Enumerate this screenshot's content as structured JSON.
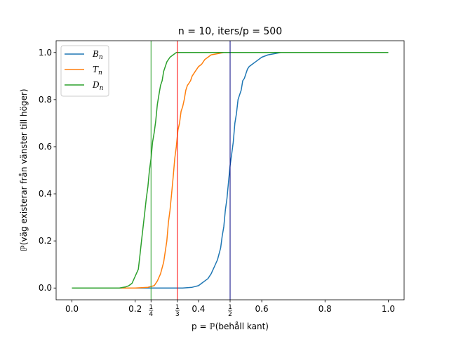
{
  "chart_data": {
    "type": "line",
    "title": "n = 10, iters/p = 500",
    "xlabel": "p = ℙ(behåll kant)",
    "ylabel": "ℙ(väg existerar från vänster till höger)",
    "xlim": [
      -0.05,
      1.05
    ],
    "ylim": [
      -0.05,
      1.05
    ],
    "xticks": [
      {
        "value": 0.0,
        "label": "0.0"
      },
      {
        "value": 0.2,
        "label": "0.2"
      },
      {
        "value": 0.4,
        "label": "0.4"
      },
      {
        "value": 0.6,
        "label": "0.6"
      },
      {
        "value": 0.8,
        "label": "0.8"
      },
      {
        "value": 1.0,
        "label": "1.0"
      }
    ],
    "fraction_xticks": [
      {
        "value": 0.25,
        "num": "1",
        "den": "4"
      },
      {
        "value": 0.3333,
        "num": "1",
        "den": "3"
      },
      {
        "value": 0.5,
        "num": "1",
        "den": "2"
      }
    ],
    "yticks": [
      {
        "value": 0.0,
        "label": "0.0"
      },
      {
        "value": 0.2,
        "label": "0.2"
      },
      {
        "value": 0.4,
        "label": "0.4"
      },
      {
        "value": 0.6,
        "label": "0.6"
      },
      {
        "value": 0.8,
        "label": "0.8"
      },
      {
        "value": 1.0,
        "label": "1.0"
      }
    ],
    "vlines": [
      {
        "x": 0.25,
        "color": "#2ca02c"
      },
      {
        "x": 0.3333,
        "color": "#ff0000"
      },
      {
        "x": 0.5,
        "color": "#000080"
      }
    ],
    "legend": {
      "placement": "top-left"
    },
    "series": [
      {
        "name": "B",
        "sub": "n",
        "color": "#1f77b4",
        "x": [
          0.0,
          0.3,
          0.35,
          0.38,
          0.4,
          0.41,
          0.42,
          0.43,
          0.44,
          0.45,
          0.46,
          0.47,
          0.475,
          0.48,
          0.485,
          0.49,
          0.495,
          0.5,
          0.505,
          0.51,
          0.515,
          0.52,
          0.525,
          0.53,
          0.535,
          0.54,
          0.545,
          0.55,
          0.555,
          0.56,
          0.57,
          0.58,
          0.59,
          0.6,
          0.62,
          0.64,
          0.66,
          1.0
        ],
        "y": [
          0.0,
          0.0,
          0.0,
          0.003,
          0.01,
          0.02,
          0.03,
          0.04,
          0.06,
          0.09,
          0.12,
          0.17,
          0.22,
          0.26,
          0.33,
          0.38,
          0.45,
          0.52,
          0.57,
          0.62,
          0.7,
          0.74,
          0.8,
          0.82,
          0.84,
          0.88,
          0.89,
          0.91,
          0.93,
          0.94,
          0.95,
          0.96,
          0.97,
          0.98,
          0.99,
          0.995,
          1.0,
          1.0
        ]
      },
      {
        "name": "T",
        "sub": "n",
        "color": "#ff7f0e",
        "x": [
          0.0,
          0.2,
          0.24,
          0.26,
          0.27,
          0.28,
          0.29,
          0.3,
          0.305,
          0.31,
          0.315,
          0.32,
          0.325,
          0.33,
          0.335,
          0.34,
          0.345,
          0.35,
          0.355,
          0.36,
          0.365,
          0.37,
          0.375,
          0.38,
          0.39,
          0.4,
          0.41,
          0.42,
          0.43,
          0.44,
          0.46,
          0.48,
          0.5,
          1.0
        ],
        "y": [
          0.0,
          0.0,
          0.003,
          0.01,
          0.03,
          0.06,
          0.11,
          0.2,
          0.28,
          0.33,
          0.4,
          0.47,
          0.55,
          0.6,
          0.67,
          0.7,
          0.75,
          0.77,
          0.8,
          0.84,
          0.86,
          0.87,
          0.88,
          0.9,
          0.92,
          0.94,
          0.95,
          0.97,
          0.98,
          0.99,
          0.995,
          1.0,
          1.0,
          1.0
        ]
      },
      {
        "name": "D",
        "sub": "n",
        "color": "#2ca02c",
        "x": [
          0.0,
          0.15,
          0.17,
          0.18,
          0.19,
          0.2,
          0.21,
          0.215,
          0.22,
          0.225,
          0.23,
          0.235,
          0.24,
          0.245,
          0.25,
          0.255,
          0.26,
          0.265,
          0.27,
          0.275,
          0.28,
          0.285,
          0.29,
          0.3,
          0.31,
          0.32,
          0.33,
          0.35,
          0.4,
          1.0
        ],
        "y": [
          0.0,
          0.0,
          0.005,
          0.01,
          0.02,
          0.05,
          0.08,
          0.14,
          0.2,
          0.26,
          0.32,
          0.38,
          0.43,
          0.5,
          0.55,
          0.62,
          0.66,
          0.71,
          0.78,
          0.82,
          0.86,
          0.88,
          0.92,
          0.96,
          0.98,
          0.99,
          1.0,
          1.0,
          1.0,
          1.0
        ]
      }
    ]
  }
}
